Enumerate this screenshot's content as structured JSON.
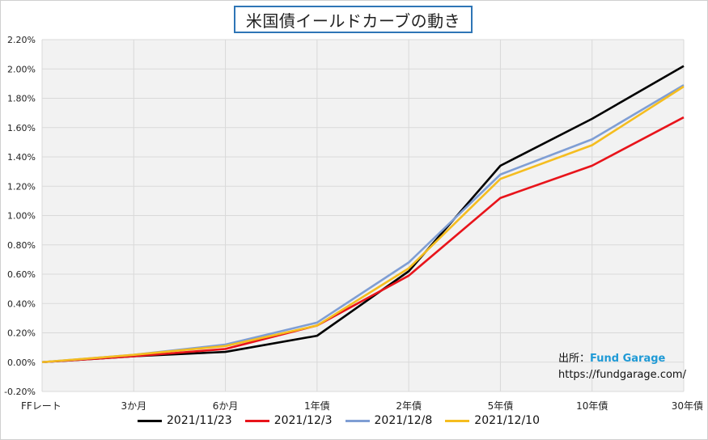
{
  "chart_data": {
    "type": "line",
    "title": "米国債イールドカーブの動き",
    "categories": [
      "FFレート",
      "3か月",
      "6か月",
      "1年債",
      "2年債",
      "5年債",
      "10年債",
      "30年債"
    ],
    "ylim": [
      -0.2,
      2.2
    ],
    "yticks": [
      "-0.20%",
      "0.00%",
      "0.20%",
      "0.40%",
      "0.60%",
      "0.80%",
      "1.00%",
      "1.20%",
      "1.40%",
      "1.60%",
      "1.80%",
      "2.00%",
      "2.20%"
    ],
    "grid": true,
    "legend_position": "bottom",
    "series": [
      {
        "name": "2021/11/23",
        "color": "#000000",
        "values": [
          0.0,
          0.04,
          0.07,
          0.18,
          0.62,
          1.34,
          1.66,
          2.02
        ]
      },
      {
        "name": "2021/12/3",
        "color": "#e8141b",
        "values": [
          0.0,
          0.04,
          0.09,
          0.25,
          0.59,
          1.12,
          1.34,
          1.67
        ]
      },
      {
        "name": "2021/12/8",
        "color": "#7f9ed4",
        "values": [
          0.0,
          0.05,
          0.12,
          0.27,
          0.68,
          1.28,
          1.52,
          1.89
        ]
      },
      {
        "name": "2021/12/10",
        "color": "#f5bd1f",
        "values": [
          0.0,
          0.05,
          0.11,
          0.25,
          0.64,
          1.25,
          1.48,
          1.88
        ]
      }
    ]
  },
  "source": {
    "label": "出所：",
    "brand": "Fund Garage",
    "url": "https://fundgarage.com/"
  }
}
